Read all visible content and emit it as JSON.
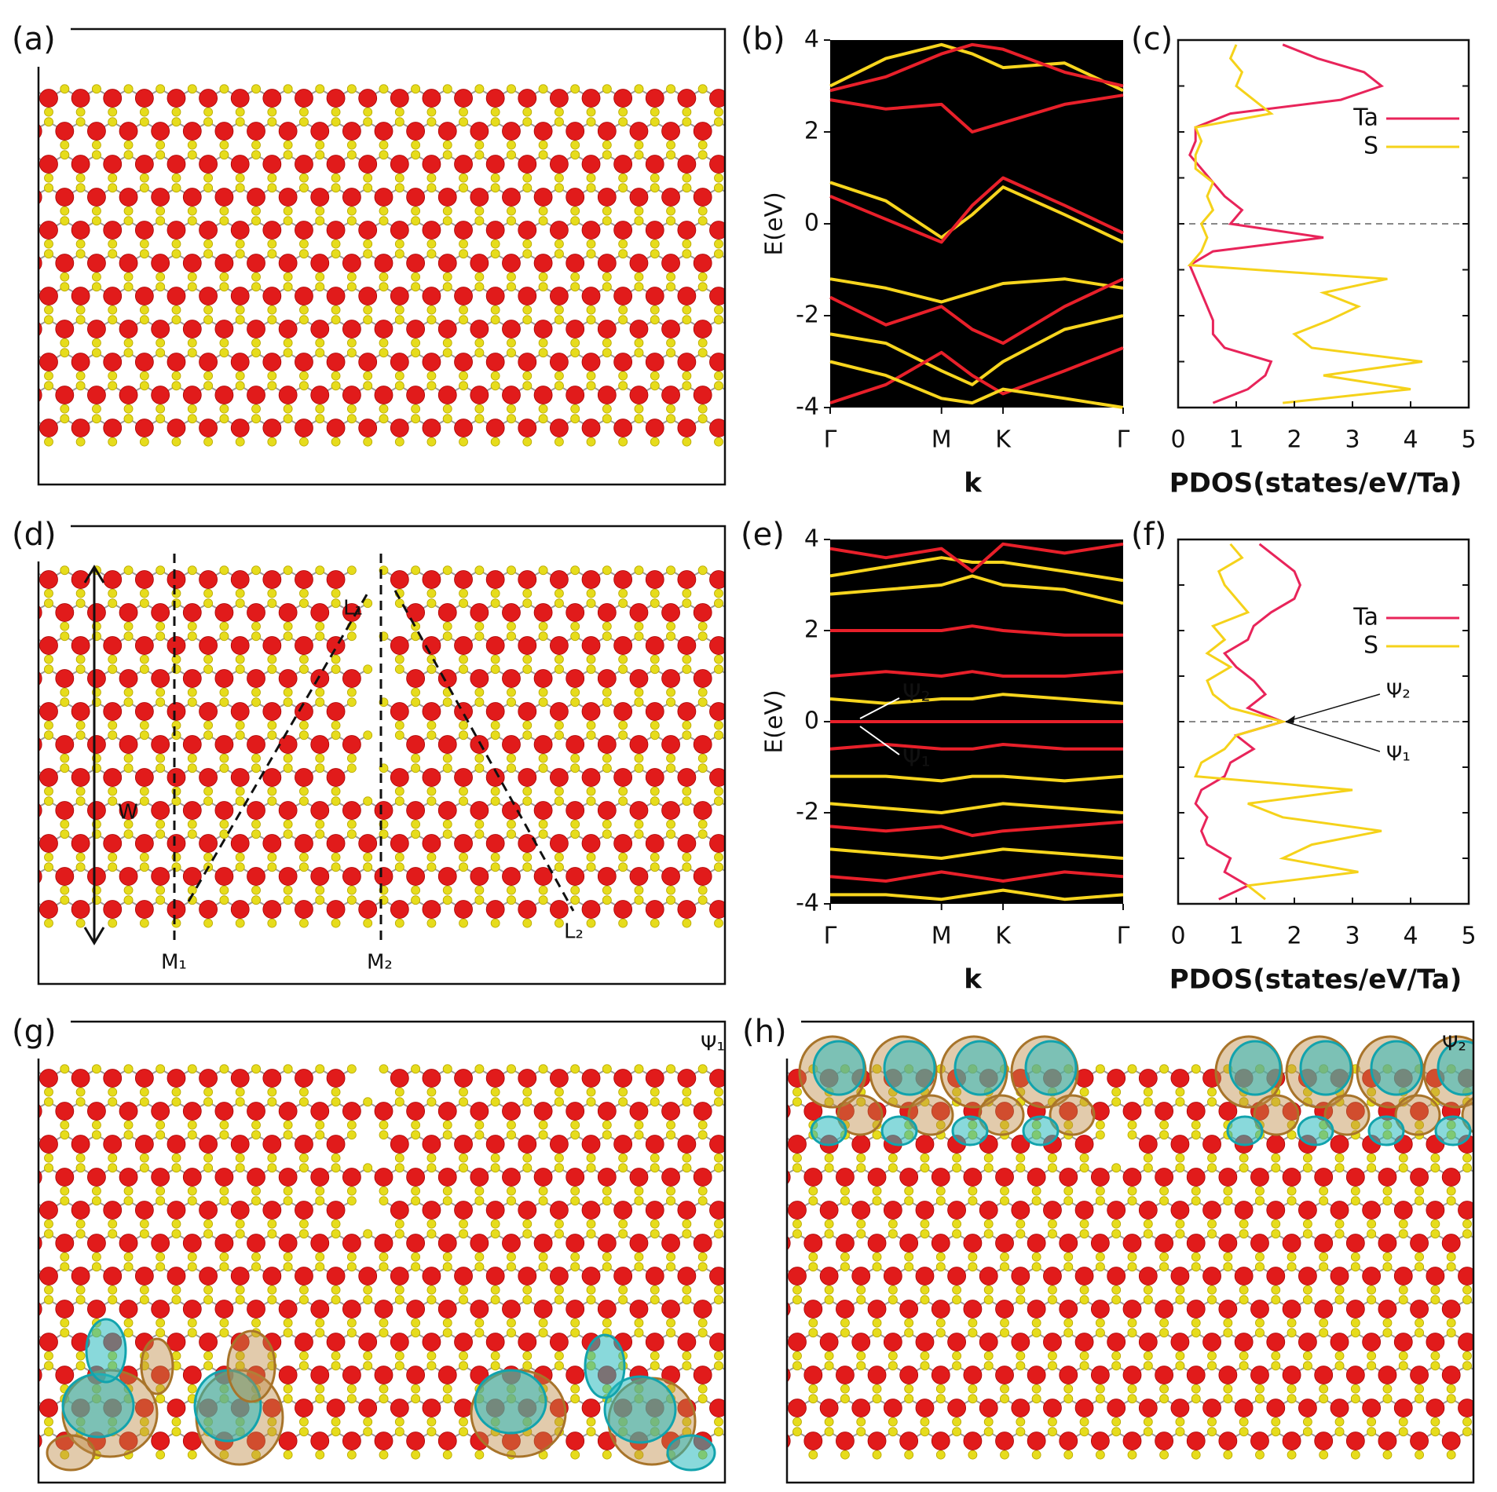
{
  "panels": {
    "a": {
      "label": "(a)"
    },
    "d": {
      "label": "(d)",
      "annotations": [
        "W",
        "L₁",
        "L₂",
        "M₁",
        "M₂"
      ]
    },
    "g": {
      "label": "(g)",
      "annotations": [
        "Ψ₁"
      ]
    },
    "h": {
      "label": "(h)",
      "annotations": [
        "Ψ₂"
      ]
    }
  },
  "chart_data": [
    {
      "type": "band",
      "panel_label": "(b)",
      "xlabel": "k",
      "ylabel": "E(eV)",
      "xlim": [
        0,
        1
      ],
      "xticks": [
        {
          "value": 0,
          "label": "Γ"
        },
        {
          "value": 0.38,
          "label": "M"
        },
        {
          "value": 0.59,
          "label": "K"
        },
        {
          "value": 1,
          "label": "Γ"
        }
      ],
      "ylim": [
        -4,
        4
      ],
      "yticks": [
        -4,
        -2,
        0,
        2,
        4
      ],
      "x": [
        0,
        0.19,
        0.38,
        0.485,
        0.59,
        0.8,
        1
      ],
      "series": [
        {
          "color": "#f7d51e",
          "values": [
            3.0,
            3.6,
            3.9,
            3.7,
            3.4,
            3.5,
            2.9
          ]
        },
        {
          "color": "#e8202a",
          "values": [
            2.9,
            3.2,
            3.7,
            3.9,
            3.8,
            3.3,
            3.0
          ]
        },
        {
          "color": "#e8202a",
          "values": [
            2.7,
            2.5,
            2.6,
            2.0,
            2.2,
            2.6,
            2.8
          ]
        },
        {
          "color": "#f7d51e",
          "values": [
            0.9,
            0.5,
            -0.3,
            0.2,
            0.8,
            0.2,
            -0.4
          ]
        },
        {
          "color": "#e8202a",
          "values": [
            0.6,
            0.1,
            -0.4,
            0.4,
            1.0,
            0.4,
            -0.2
          ]
        },
        {
          "color": "#f7d51e",
          "values": [
            -1.2,
            -1.4,
            -1.7,
            -1.5,
            -1.3,
            -1.2,
            -1.4
          ]
        },
        {
          "color": "#e8202a",
          "values": [
            -1.6,
            -2.2,
            -1.8,
            -2.3,
            -2.6,
            -1.8,
            -1.2
          ]
        },
        {
          "color": "#f7d51e",
          "values": [
            -2.4,
            -2.6,
            -3.2,
            -3.5,
            -3.0,
            -2.3,
            -2.0
          ]
        },
        {
          "color": "#e8202a",
          "values": [
            -3.9,
            -3.5,
            -2.8,
            -3.3,
            -3.7,
            -3.2,
            -2.7
          ]
        },
        {
          "color": "#f7d51e",
          "values": [
            -3.0,
            -3.3,
            -3.8,
            -3.9,
            -3.6,
            -3.8,
            -4.0
          ]
        }
      ]
    },
    {
      "type": "pdos",
      "panel_label": "(c)",
      "xlabel": "PDOS(states/eV/Ta)",
      "xlim": [
        0,
        5
      ],
      "xticks": [
        0,
        1,
        2,
        3,
        4,
        5
      ],
      "ylim": [
        -4,
        4
      ],
      "yticks": [
        -4,
        -3,
        -2,
        -1,
        0,
        1,
        2,
        3,
        4
      ],
      "ref_line": 0,
      "legend": "upper right",
      "y": [
        -3.9,
        -3.6,
        -3.3,
        -3.0,
        -2.7,
        -2.4,
        -2.1,
        -1.8,
        -1.5,
        -1.2,
        -0.9,
        -0.6,
        -0.3,
        0,
        0.3,
        0.6,
        0.9,
        1.2,
        1.5,
        1.8,
        2.1,
        2.4,
        2.7,
        3.0,
        3.3,
        3.6,
        3.9
      ],
      "series": [
        {
          "name": "Ta",
          "color": "#e8245a",
          "values": [
            0.6,
            1.2,
            1.5,
            1.6,
            0.8,
            0.6,
            0.6,
            0.5,
            0.4,
            0.3,
            0.2,
            0.6,
            2.5,
            0.9,
            1.1,
            0.8,
            0.6,
            0.4,
            0.2,
            0.3,
            0.3,
            0.9,
            2.8,
            3.5,
            3.2,
            2.4,
            1.8
          ]
        },
        {
          "name": "S",
          "color": "#f5d21a",
          "values": [
            1.8,
            4.0,
            2.5,
            4.2,
            2.3,
            2.0,
            2.6,
            3.1,
            2.5,
            3.6,
            0.2,
            0.4,
            0.5,
            0.4,
            0.6,
            0.5,
            0.6,
            0.3,
            0.3,
            0.4,
            0.3,
            1.6,
            1.3,
            1.0,
            1.1,
            0.9,
            1.0
          ]
        }
      ]
    },
    {
      "type": "band",
      "panel_label": "(e)",
      "xlabel": "k",
      "ylabel": "E(eV)",
      "xlim": [
        0,
        1
      ],
      "xticks": [
        {
          "value": 0,
          "label": "Γ"
        },
        {
          "value": 0.38,
          "label": "M"
        },
        {
          "value": 0.59,
          "label": "K"
        },
        {
          "value": 1,
          "label": "Γ"
        }
      ],
      "ylim": [
        -4,
        4
      ],
      "yticks": [
        -4,
        -2,
        0,
        2,
        4
      ],
      "annotations": [
        "Ψ₂",
        "Ψ₁"
      ],
      "x": [
        0,
        0.19,
        0.38,
        0.485,
        0.59,
        0.8,
        1
      ],
      "series": [
        {
          "color": "#f7d51e",
          "values": [
            3.2,
            3.4,
            3.6,
            3.5,
            3.5,
            3.3,
            3.1
          ]
        },
        {
          "color": "#f7d51e",
          "values": [
            2.8,
            2.9,
            3.0,
            3.2,
            3.0,
            2.9,
            2.6
          ]
        },
        {
          "color": "#e8202a",
          "values": [
            3.8,
            3.6,
            3.8,
            3.3,
            3.9,
            3.7,
            3.9
          ]
        },
        {
          "color": "#e8202a",
          "values": [
            2.0,
            2.0,
            2.0,
            2.1,
            2.0,
            1.9,
            1.9
          ]
        },
        {
          "color": "#e8202a",
          "values": [
            1.0,
            1.1,
            1.0,
            1.1,
            1.0,
            1.0,
            1.1
          ]
        },
        {
          "color": "#f7d51e",
          "values": [
            0.5,
            0.4,
            0.5,
            0.5,
            0.6,
            0.5,
            0.4
          ]
        },
        {
          "color": "#e8202a",
          "values": [
            0.0,
            0.0,
            0.0,
            0.0,
            0.0,
            0.0,
            0.0
          ]
        },
        {
          "color": "#e8202a",
          "values": [
            -0.6,
            -0.5,
            -0.6,
            -0.6,
            -0.5,
            -0.6,
            -0.6
          ]
        },
        {
          "color": "#f7d51e",
          "values": [
            -1.2,
            -1.2,
            -1.3,
            -1.2,
            -1.2,
            -1.3,
            -1.2
          ]
        },
        {
          "color": "#f7d51e",
          "values": [
            -1.8,
            -1.9,
            -2.0,
            -1.9,
            -1.8,
            -1.9,
            -2.0
          ]
        },
        {
          "color": "#e8202a",
          "values": [
            -2.3,
            -2.4,
            -2.3,
            -2.5,
            -2.4,
            -2.3,
            -2.2
          ]
        },
        {
          "color": "#f7d51e",
          "values": [
            -2.8,
            -2.9,
            -3.0,
            -2.9,
            -2.8,
            -2.9,
            -3.0
          ]
        },
        {
          "color": "#e8202a",
          "values": [
            -3.4,
            -3.5,
            -3.3,
            -3.4,
            -3.5,
            -3.3,
            -3.4
          ]
        },
        {
          "color": "#f7d51e",
          "values": [
            -3.8,
            -3.8,
            -3.9,
            -3.8,
            -3.7,
            -3.9,
            -3.8
          ]
        }
      ]
    },
    {
      "type": "pdos",
      "panel_label": "(f)",
      "xlabel": "PDOS(states/eV/Ta)",
      "xlim": [
        0,
        5
      ],
      "xticks": [
        0,
        1,
        2,
        3,
        4,
        5
      ],
      "ylim": [
        -4,
        4
      ],
      "yticks": [
        -4,
        -3,
        -2,
        -1,
        0,
        1,
        2,
        3,
        4
      ],
      "ref_line": 0,
      "legend": "upper right",
      "annotations": [
        "Ψ₂",
        "Ψ₁"
      ],
      "y": [
        -3.9,
        -3.6,
        -3.3,
        -3.0,
        -2.7,
        -2.4,
        -2.1,
        -1.8,
        -1.5,
        -1.2,
        -0.9,
        -0.6,
        -0.3,
        0,
        0.3,
        0.6,
        0.9,
        1.2,
        1.5,
        1.8,
        2.1,
        2.4,
        2.7,
        3.0,
        3.3,
        3.6,
        3.9
      ],
      "series": [
        {
          "name": "Ta",
          "color": "#e8245a",
          "values": [
            0.7,
            1.2,
            0.8,
            0.9,
            0.5,
            0.4,
            0.5,
            0.3,
            0.4,
            0.8,
            0.9,
            1.3,
            1.0,
            1.8,
            1.2,
            1.5,
            1.3,
            1.0,
            0.8,
            1.2,
            1.3,
            1.6,
            2.0,
            2.1,
            2.0,
            1.7,
            1.4
          ]
        },
        {
          "name": "S",
          "color": "#f5d21a",
          "values": [
            1.5,
            1.2,
            3.1,
            1.8,
            2.3,
            3.5,
            1.8,
            1.2,
            3.0,
            0.3,
            0.4,
            0.8,
            1.0,
            1.8,
            0.9,
            0.6,
            0.5,
            0.9,
            0.5,
            0.8,
            0.6,
            1.2,
            1.0,
            0.8,
            0.7,
            1.1,
            0.9
          ]
        }
      ]
    }
  ]
}
